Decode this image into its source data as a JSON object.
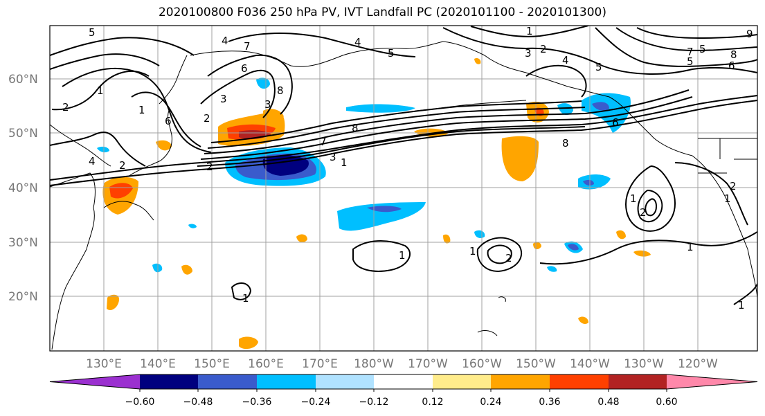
{
  "title": "2020100800 F036 250 hPa PV, IVT Landfall PC (2020101100 - 2020101300)",
  "map": {
    "lon_labels": [
      "130°E",
      "140°E",
      "150°E",
      "160°E",
      "170°E",
      "180°W",
      "170°W",
      "160°W",
      "150°W",
      "140°W",
      "130°W",
      "120°W"
    ],
    "lat_labels": [
      "60°N",
      "50°N",
      "40°N",
      "30°N",
      "20°N"
    ],
    "contour_labels": [
      "5",
      "1",
      "7",
      "2",
      "4",
      "3",
      "8",
      "6",
      "5",
      "1",
      "3",
      "2",
      "4",
      "5",
      "8",
      "6",
      "7",
      "5",
      "1",
      "2",
      "4",
      "2",
      "3",
      "6",
      "8",
      "1",
      "7",
      "6",
      "8",
      "9",
      "5",
      "4",
      "3",
      "2",
      "1",
      "1",
      "2",
      "1",
      "2",
      "1",
      "2",
      "1",
      "1",
      "1"
    ]
  },
  "colorbar": {
    "ticks": [
      "−0.60",
      "−0.48",
      "−0.36",
      "−0.24",
      "−0.12",
      "0.12",
      "0.24",
      "0.36",
      "0.48",
      "0.60"
    ],
    "colors": [
      "#9b30d0",
      "#00007f",
      "#3a5bcc",
      "#00bfff",
      "#b0e2ff",
      "#ffffff",
      "#ffec8b",
      "#ffa500",
      "#ff4000",
      "#b22222",
      "#ff88aa"
    ]
  },
  "colors": {
    "contour": "#000000",
    "grid": "#a0a0a0",
    "tick_label": "#777777"
  }
}
